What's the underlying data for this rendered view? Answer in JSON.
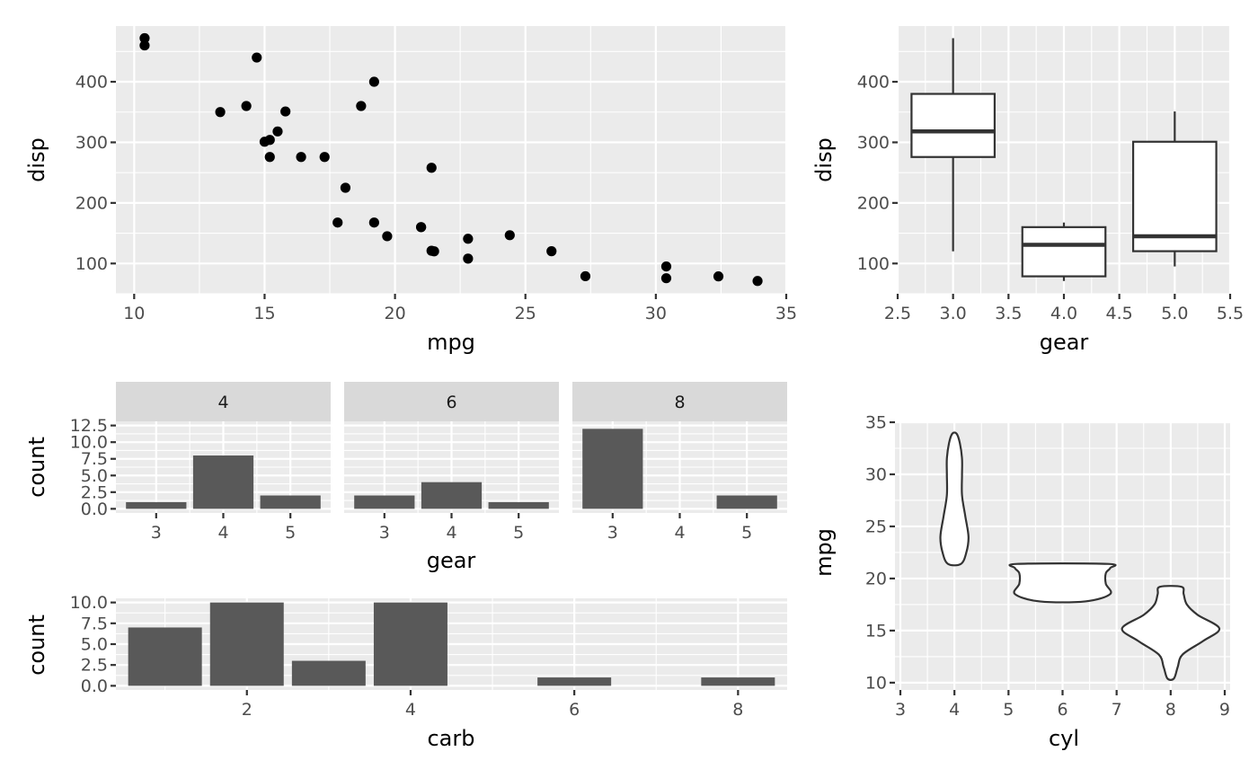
{
  "chart_data": [
    {
      "type": "scatter",
      "xlabel": "mpg",
      "ylabel": "disp",
      "xlim": [
        9.3,
        35
      ],
      "ylim": [
        50,
        492
      ],
      "x_ticks": [
        10,
        15,
        20,
        25,
        30,
        35
      ],
      "y_ticks": [
        100,
        200,
        300,
        400
      ],
      "points": [
        {
          "x": 21.0,
          "y": 160
        },
        {
          "x": 21.0,
          "y": 160
        },
        {
          "x": 22.8,
          "y": 108
        },
        {
          "x": 21.4,
          "y": 258
        },
        {
          "x": 18.7,
          "y": 360
        },
        {
          "x": 18.1,
          "y": 225
        },
        {
          "x": 14.3,
          "y": 360
        },
        {
          "x": 24.4,
          "y": 146.7
        },
        {
          "x": 22.8,
          "y": 140.8
        },
        {
          "x": 19.2,
          "y": 167.6
        },
        {
          "x": 17.8,
          "y": 167.6
        },
        {
          "x": 16.4,
          "y": 275.8
        },
        {
          "x": 17.3,
          "y": 275.8
        },
        {
          "x": 15.2,
          "y": 275.8
        },
        {
          "x": 10.4,
          "y": 472
        },
        {
          "x": 10.4,
          "y": 460
        },
        {
          "x": 14.7,
          "y": 440
        },
        {
          "x": 32.4,
          "y": 78.7
        },
        {
          "x": 30.4,
          "y": 75.7
        },
        {
          "x": 33.9,
          "y": 71.1
        },
        {
          "x": 21.5,
          "y": 120.1
        },
        {
          "x": 15.5,
          "y": 318
        },
        {
          "x": 15.2,
          "y": 304
        },
        {
          "x": 13.3,
          "y": 350
        },
        {
          "x": 19.2,
          "y": 400
        },
        {
          "x": 27.3,
          "y": 79
        },
        {
          "x": 26.0,
          "y": 120.3
        },
        {
          "x": 30.4,
          "y": 95.1
        },
        {
          "x": 15.8,
          "y": 351
        },
        {
          "x": 19.7,
          "y": 145
        },
        {
          "x": 15.0,
          "y": 301
        },
        {
          "x": 21.4,
          "y": 121
        }
      ]
    },
    {
      "type": "box",
      "xlabel": "gear",
      "ylabel": "disp",
      "xlim": [
        2.5,
        5.5
      ],
      "ylim": [
        50,
        492
      ],
      "x_ticks": [
        2.5,
        3.0,
        3.5,
        4.0,
        4.5,
        5.0,
        5.5
      ],
      "x_tick_labels": [
        "2.5",
        "3.0",
        "3.5",
        "4.0",
        "4.5",
        "5.0",
        "5.5"
      ],
      "y_ticks": [
        100,
        200,
        300,
        400
      ],
      "boxes": [
        {
          "x": 3,
          "lower": 120.1,
          "q1": 275.8,
          "median": 318,
          "q3": 380,
          "upper": 472
        },
        {
          "x": 4,
          "lower": 71.1,
          "q1": 78.8,
          "median": 130.9,
          "q3": 160,
          "upper": 167.6
        },
        {
          "x": 5,
          "lower": 95.1,
          "q1": 120.3,
          "median": 145,
          "q3": 301,
          "upper": 351
        }
      ]
    },
    {
      "type": "bar",
      "facets": [
        "4",
        "6",
        "8"
      ],
      "categories": [
        "3",
        "4",
        "5"
      ],
      "xlabel": "gear",
      "ylabel": "count",
      "ylim": [
        0,
        12.5
      ],
      "y_ticks": [
        0,
        2.5,
        5,
        7.5,
        10,
        12.5
      ],
      "y_tick_labels": [
        "0.0",
        "2.5",
        "5.0",
        "7.5",
        "10.0",
        "12.5"
      ],
      "series": [
        {
          "facet": "4",
          "values": [
            1,
            8,
            2
          ]
        },
        {
          "facet": "6",
          "values": [
            2,
            4,
            1
          ]
        },
        {
          "facet": "8",
          "values": [
            12,
            0,
            2
          ]
        }
      ]
    },
    {
      "type": "bar",
      "xlabel": "carb",
      "ylabel": "count",
      "xlim": [
        0.4,
        8.6
      ],
      "ylim": [
        0,
        10
      ],
      "x_ticks": [
        2,
        4,
        6,
        8
      ],
      "y_ticks": [
        0,
        2.5,
        5,
        7.5,
        10
      ],
      "y_tick_labels": [
        "0.0",
        "2.5",
        "5.0",
        "7.5",
        "10.0"
      ],
      "x": [
        1,
        2,
        3,
        4,
        6,
        8
      ],
      "values": [
        7,
        10,
        3,
        10,
        1,
        1
      ]
    },
    {
      "type": "violin",
      "xlabel": "cyl",
      "ylabel": "mpg",
      "xlim": [
        2.9,
        9.1
      ],
      "ylim": [
        9.3,
        35
      ],
      "x_ticks": [
        3,
        4,
        5,
        6,
        7,
        8,
        9
      ],
      "y_ticks": [
        10,
        15,
        20,
        25,
        30,
        35
      ],
      "violins": [
        {
          "x": 4,
          "profile": [
            [
              21.4,
              0.12
            ],
            [
              22.5,
              0.22
            ],
            [
              24.0,
              0.26
            ],
            [
              26.0,
              0.2
            ],
            [
              28.0,
              0.14
            ],
            [
              30.0,
              0.14
            ],
            [
              31.5,
              0.14
            ],
            [
              33.0,
              0.1
            ],
            [
              33.9,
              0.04
            ]
          ]
        },
        {
          "x": 6,
          "profile": [
            [
              17.8,
              0.42
            ],
            [
              18.5,
              0.88
            ],
            [
              19.5,
              0.8
            ],
            [
              20.5,
              0.8
            ],
            [
              21.0,
              0.88
            ],
            [
              21.4,
              0.84
            ]
          ]
        },
        {
          "x": 8,
          "profile": [
            [
              10.4,
              0.06
            ],
            [
              11.5,
              0.13
            ],
            [
              12.7,
              0.22
            ],
            [
              14.0,
              0.6
            ],
            [
              15.2,
              0.9
            ],
            [
              16.5,
              0.5
            ],
            [
              17.5,
              0.3
            ],
            [
              18.5,
              0.24
            ],
            [
              19.2,
              0.2
            ]
          ]
        }
      ]
    }
  ]
}
